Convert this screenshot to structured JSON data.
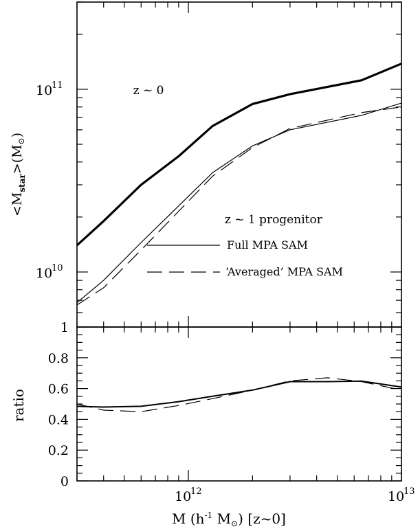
{
  "chart_data": [
    {
      "type": "line",
      "panel": "top",
      "x_scale": "log",
      "y_scale": "log",
      "xlim": [
        300000000000.0,
        10000000000000.0
      ],
      "ylim": [
        5000000000.0,
        300000000000.0
      ],
      "ylabel": "<M_star>(M_sun)",
      "ylabel_parts": {
        "lt": "<",
        "main": "M",
        "sub": "star",
        "gt": ">(M",
        "sun": "⊙",
        "close": ")"
      },
      "ytick_labels": [
        {
          "value": 10000000000.0,
          "base": "10",
          "exp": "10"
        },
        {
          "value": 100000000000.0,
          "base": "10",
          "exp": "11"
        }
      ],
      "annotations": [
        {
          "text": "z ~ 0",
          "x": 550000000000.0,
          "y": 94000000000.0
        },
        {
          "text": "z ~ 1 progenitor",
          "x": 1480000000000.0,
          "y": 18500000000.0
        }
      ],
      "legend": {
        "placement": "lower-right",
        "entries": [
          {
            "label": "Full MPA SAM",
            "style": "solid"
          },
          {
            "label": "‘Averaged’ MPA SAM",
            "style": "dashed"
          }
        ]
      },
      "series": [
        {
          "style": "solid-thick",
          "x": [
            300000000000.0,
            400000000000.0,
            600000000000.0,
            900000000000.0,
            1300000000000.0,
            2000000000000.0,
            3000000000000.0,
            6500000000000.0,
            10000000000000.0
          ],
          "y": [
            14000000000.0,
            19000000000.0,
            30000000000.0,
            43000000000.0,
            63000000000.0,
            83000000000.0,
            94000000000.0,
            112000000000.0,
            138000000000.0
          ]
        },
        {
          "style": "solid-thin",
          "x": [
            300000000000.0,
            400000000000.0,
            600000000000.0,
            900000000000.0,
            1300000000000.0,
            2000000000000.0,
            3000000000000.0,
            6500000000000.0,
            10000000000000.0
          ],
          "y": [
            6800000000.0,
            9000000000.0,
            14500000000.0,
            23000000000.0,
            35000000000.0,
            49000000000.0,
            60000000000.0,
            72000000000.0,
            84000000000.0
          ]
        },
        {
          "style": "dashed",
          "x": [
            300000000000.0,
            400000000000.0,
            600000000000.0,
            900000000000.0,
            1300000000000.0,
            2000000000000.0,
            3000000000000.0,
            6500000000000.0,
            10000000000000.0
          ],
          "y": [
            6600000000.0,
            8200000000.0,
            13200000000.0,
            21500000000.0,
            33500000000.0,
            48000000000.0,
            61000000000.0,
            74500000000.0,
            80000000000.0
          ]
        }
      ]
    },
    {
      "type": "line",
      "panel": "bottom",
      "x_scale": "log",
      "y_scale": "linear",
      "xlim": [
        300000000000.0,
        10000000000000.0
      ],
      "ylim": [
        0,
        1
      ],
      "ylabel": "ratio",
      "xlabel": "M (h^-1 M_sun) [z~0]",
      "xlabel_parts": {
        "a": "M  (h",
        "exp": "-1",
        "b": " M",
        "sun": "⊙",
        "c": ")  [z~0]"
      },
      "ytick_labels": [
        "0",
        "0.2",
        "0.4",
        "0.6",
        "0.8",
        "1"
      ],
      "xtick_labels": [
        {
          "value": 1000000000000.0,
          "base": "10",
          "exp": "12"
        },
        {
          "value": 10000000000000.0,
          "base": "10",
          "exp": "13"
        }
      ],
      "series": [
        {
          "style": "solid",
          "x": [
            300000000000.0,
            400000000000.0,
            600000000000.0,
            900000000000.0,
            1300000000000.0,
            2000000000000.0,
            3000000000000.0,
            4500000000000.0,
            6500000000000.0,
            10000000000000.0
          ],
          "y": [
            0.485,
            0.48,
            0.485,
            0.515,
            0.55,
            0.59,
            0.645,
            0.645,
            0.648,
            0.61
          ]
        },
        {
          "style": "dashed",
          "x": [
            300000000000.0,
            400000000000.0,
            600000000000.0,
            900000000000.0,
            1300000000000.0,
            2000000000000.0,
            3000000000000.0,
            4500000000000.0,
            6500000000000.0,
            10000000000000.0
          ],
          "y": [
            0.5,
            0.46,
            0.45,
            0.49,
            0.535,
            0.59,
            0.65,
            0.67,
            0.645,
            0.59
          ]
        }
      ]
    }
  ]
}
